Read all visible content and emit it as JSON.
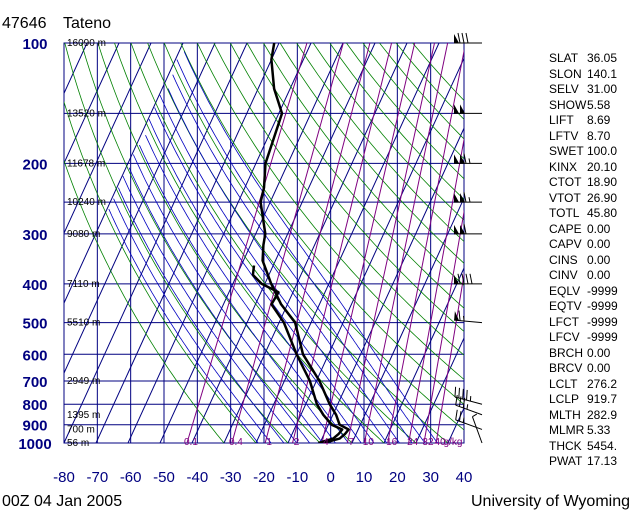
{
  "header": {
    "station_id": "47646",
    "station_name": "Tateno"
  },
  "footer": {
    "left": "00Z 04 Jan 2005",
    "right": "University of Wyoming"
  },
  "chart_data": {
    "type": "line",
    "title": "",
    "xlabel": "",
    "ylabel": "",
    "xlim": [
      -80,
      40
    ],
    "ylim": [
      1000,
      100
    ],
    "y_scale": "log",
    "x_ticks": [
      -80,
      -70,
      -60,
      -50,
      -40,
      -30,
      -20,
      -10,
      0,
      10,
      20,
      30,
      40
    ],
    "x_tick_labels": [
      "-80",
      "-70",
      "-60",
      "-50",
      "-40",
      "-30",
      "-20",
      "-10",
      "0",
      "10",
      "20",
      "30",
      "40"
    ],
    "pressure_levels": [
      100,
      150,
      200,
      250,
      300,
      400,
      500,
      600,
      700,
      800,
      900,
      1000
    ],
    "pressure_labels": [
      "100",
      "200",
      "300",
      "400",
      "500",
      "600",
      "700",
      "800",
      "900",
      "1000"
    ],
    "height_labels": [
      {
        "p": 100,
        "label": "16090 m"
      },
      {
        "p": 150,
        "label": "13520 m"
      },
      {
        "p": 200,
        "label": "11678 m"
      },
      {
        "p": 250,
        "label": "10240 m"
      },
      {
        "p": 300,
        "label": "9080 m"
      },
      {
        "p": 400,
        "label": "7110 m"
      },
      {
        "p": 500,
        "label": "5510 m"
      },
      {
        "p": 700,
        "label": "2949 m"
      },
      {
        "p": 850,
        "label": "1395 m"
      },
      {
        "p": 925,
        "label": "700 m"
      },
      {
        "p": 1000,
        "label": "56 m"
      }
    ],
    "mixing_ratio_labels": [
      "0.1",
      "0.4",
      "1",
      "2",
      "4",
      "7",
      "10",
      "16",
      "24",
      "32",
      "40",
      "g/kg"
    ],
    "mixing_ratios": [
      0.1,
      0.4,
      1,
      2,
      4,
      7,
      10,
      16,
      24,
      32,
      40
    ],
    "grid": true,
    "series": [
      {
        "color": "#000000",
        "points": [
          {
            "p": 1000,
            "t": 1.0
          },
          {
            "p": 975,
            "t": 5.5
          },
          {
            "p": 950,
            "t": 6.5
          },
          {
            "p": 925,
            "t": 7.0
          },
          {
            "p": 900,
            "t": 3.5
          },
          {
            "p": 850,
            "t": 1.0
          },
          {
            "p": 800,
            "t": -2.5
          },
          {
            "p": 700,
            "t": -9.0
          },
          {
            "p": 600,
            "t": -18.0
          },
          {
            "p": 500,
            "t": -25.0
          },
          {
            "p": 450,
            "t": -32.0
          },
          {
            "p": 400,
            "t": -38.0
          },
          {
            "p": 350,
            "t": -44.0
          },
          {
            "p": 320,
            "t": -46.0
          },
          {
            "p": 300,
            "t": -47.0
          },
          {
            "p": 250,
            "t": -53.0
          },
          {
            "p": 230,
            "t": -54.0
          },
          {
            "p": 200,
            "t": -57.0
          },
          {
            "p": 150,
            "t": -59.0
          },
          {
            "p": 130,
            "t": -65.0
          },
          {
            "p": 110,
            "t": -70.0
          },
          {
            "p": 100,
            "t": -71.5
          }
        ]
      },
      {
        "color": "#000000",
        "points": [
          {
            "p": 1000,
            "t": -0.5
          },
          {
            "p": 975,
            "t": 3.5
          },
          {
            "p": 950,
            "t": 4.5
          },
          {
            "p": 925,
            "t": 5.0
          },
          {
            "p": 900,
            "t": 1.0
          },
          {
            "p": 850,
            "t": -3.0
          },
          {
            "p": 800,
            "t": -6.5
          },
          {
            "p": 700,
            "t": -12.0
          },
          {
            "p": 600,
            "t": -20.0
          },
          {
            "p": 500,
            "t": -28.5
          },
          {
            "p": 450,
            "t": -35.0
          },
          {
            "p": 420,
            "t": -34.5
          },
          {
            "p": 400,
            "t": -41.0
          },
          {
            "p": 380,
            "t": -45.0
          },
          {
            "p": 360,
            "t": -46.0
          }
        ]
      }
    ],
    "wind_barbs": [
      {
        "p": 1000,
        "dir": 340,
        "spd": 5
      },
      {
        "p": 925,
        "dir": 290,
        "spd": 25
      },
      {
        "p": 850,
        "dir": 290,
        "spd": 35
      },
      {
        "p": 800,
        "dir": 285,
        "spd": 45
      },
      {
        "p": 500,
        "dir": 275,
        "spd": 65
      },
      {
        "p": 400,
        "dir": 270,
        "spd": 90
      },
      {
        "p": 300,
        "dir": 270,
        "spd": 110
      },
      {
        "p": 250,
        "dir": 270,
        "spd": 115
      },
      {
        "p": 200,
        "dir": 270,
        "spd": 115
      },
      {
        "p": 150,
        "dir": 270,
        "spd": 100
      },
      {
        "p": 100,
        "dir": 270,
        "spd": 80
      }
    ]
  },
  "indices": [
    {
      "name": "SLAT",
      "value": "36.05"
    },
    {
      "name": "SLON",
      "value": "140.1"
    },
    {
      "name": "SELV",
      "value": "31.00"
    },
    {
      "name": "SHOW",
      "value": "5.58"
    },
    {
      "name": "LIFT",
      "value": "8.69"
    },
    {
      "name": "LFTV",
      "value": "8.70"
    },
    {
      "name": "SWET",
      "value": "100.0"
    },
    {
      "name": "KINX",
      "value": "20.10"
    },
    {
      "name": "CTOT",
      "value": "18.90"
    },
    {
      "name": "VTOT",
      "value": "26.90"
    },
    {
      "name": "TOTL",
      "value": "45.80"
    },
    {
      "name": "CAPE",
      "value": "0.00"
    },
    {
      "name": "CAPV",
      "value": "0.00"
    },
    {
      "name": "CINS",
      "value": "0.00"
    },
    {
      "name": "CINV",
      "value": "0.00"
    },
    {
      "name": "EQLV",
      "value": "-9999"
    },
    {
      "name": "EQTV",
      "value": "-9999"
    },
    {
      "name": "LFCT",
      "value": "-9999"
    },
    {
      "name": "LFCV",
      "value": "-9999"
    },
    {
      "name": "BRCH",
      "value": "0.00"
    },
    {
      "name": "BRCV",
      "value": "0.00"
    },
    {
      "name": "LCLT",
      "value": "276.2"
    },
    {
      "name": "LCLP",
      "value": "919.7"
    },
    {
      "name": "MLTH",
      "value": "282.9"
    },
    {
      "name": "MLMR",
      "value": "5.33"
    },
    {
      "name": "THCK",
      "value": "5454."
    },
    {
      "name": "PWAT",
      "value": "17.13"
    }
  ],
  "colors": {
    "grid": "#000080",
    "dry_adiabat": "#008000",
    "moist_adiabat": "#0000c0",
    "mixing_ratio": "#800080",
    "isotherm": "#000080",
    "sounding": "#000000"
  }
}
